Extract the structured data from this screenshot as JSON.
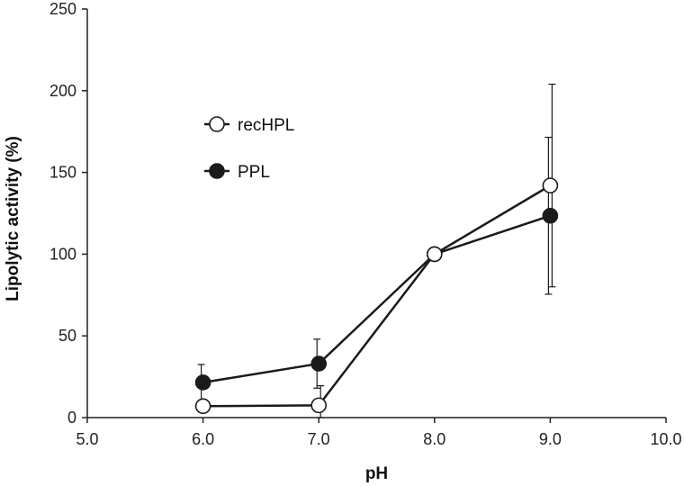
{
  "chart_data": {
    "type": "line",
    "title": "",
    "xlabel": "pH",
    "ylabel": "Lipolytic activity (%)",
    "xlim": [
      5.0,
      10.0
    ],
    "ylim": [
      0,
      250
    ],
    "xticks": [
      5.0,
      6.0,
      7.0,
      8.0,
      9.0,
      10.0
    ],
    "xtick_labels": [
      "5.0",
      "6.0",
      "7.0",
      "8.0",
      "9.0",
      "10.0"
    ],
    "yticks": [
      0,
      50,
      100,
      150,
      200,
      250
    ],
    "ytick_labels": [
      "0",
      "50",
      "100",
      "150",
      "200",
      "250"
    ],
    "grid": false,
    "legend_position": "upper-left",
    "series": [
      {
        "name": "recHPL",
        "marker": "open-circle",
        "color": "#1a1a1a",
        "x": [
          6.0,
          7.0,
          8.0,
          9.0
        ],
        "y": [
          7,
          7.5,
          100,
          142
        ],
        "error": [
          0,
          12,
          0,
          62
        ]
      },
      {
        "name": "PPL",
        "marker": "filled-circle",
        "color": "#1a1a1a",
        "x": [
          6.0,
          7.0,
          8.0,
          9.0
        ],
        "y": [
          21.5,
          33,
          100,
          123.5
        ],
        "error": [
          11,
          15,
          0,
          48
        ]
      }
    ]
  }
}
